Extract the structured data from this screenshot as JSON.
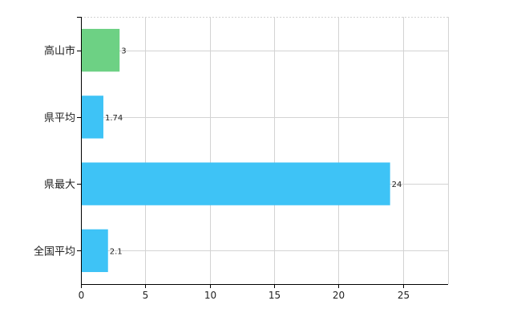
{
  "chart_data": {
    "type": "bar",
    "orientation": "horizontal",
    "categories": [
      "高山市",
      "県平均",
      "県最大",
      "全国平均"
    ],
    "values": [
      3,
      1.74,
      24,
      2.1
    ],
    "data_labels": [
      "3",
      "1.74",
      "24",
      "2.1"
    ],
    "bar_colors": [
      "#6dd184",
      "#3ec3f6",
      "#3ec3f6",
      "#3ec3f6"
    ],
    "title": "",
    "xlabel": "",
    "ylabel": "",
    "xlim": [
      0,
      28.5
    ],
    "x_ticks": [
      0,
      5,
      10,
      15,
      20,
      25
    ],
    "x_tick_labels": [
      "0",
      "5",
      "10",
      "15",
      "20",
      "25"
    ],
    "grid": true,
    "legend": "none"
  }
}
